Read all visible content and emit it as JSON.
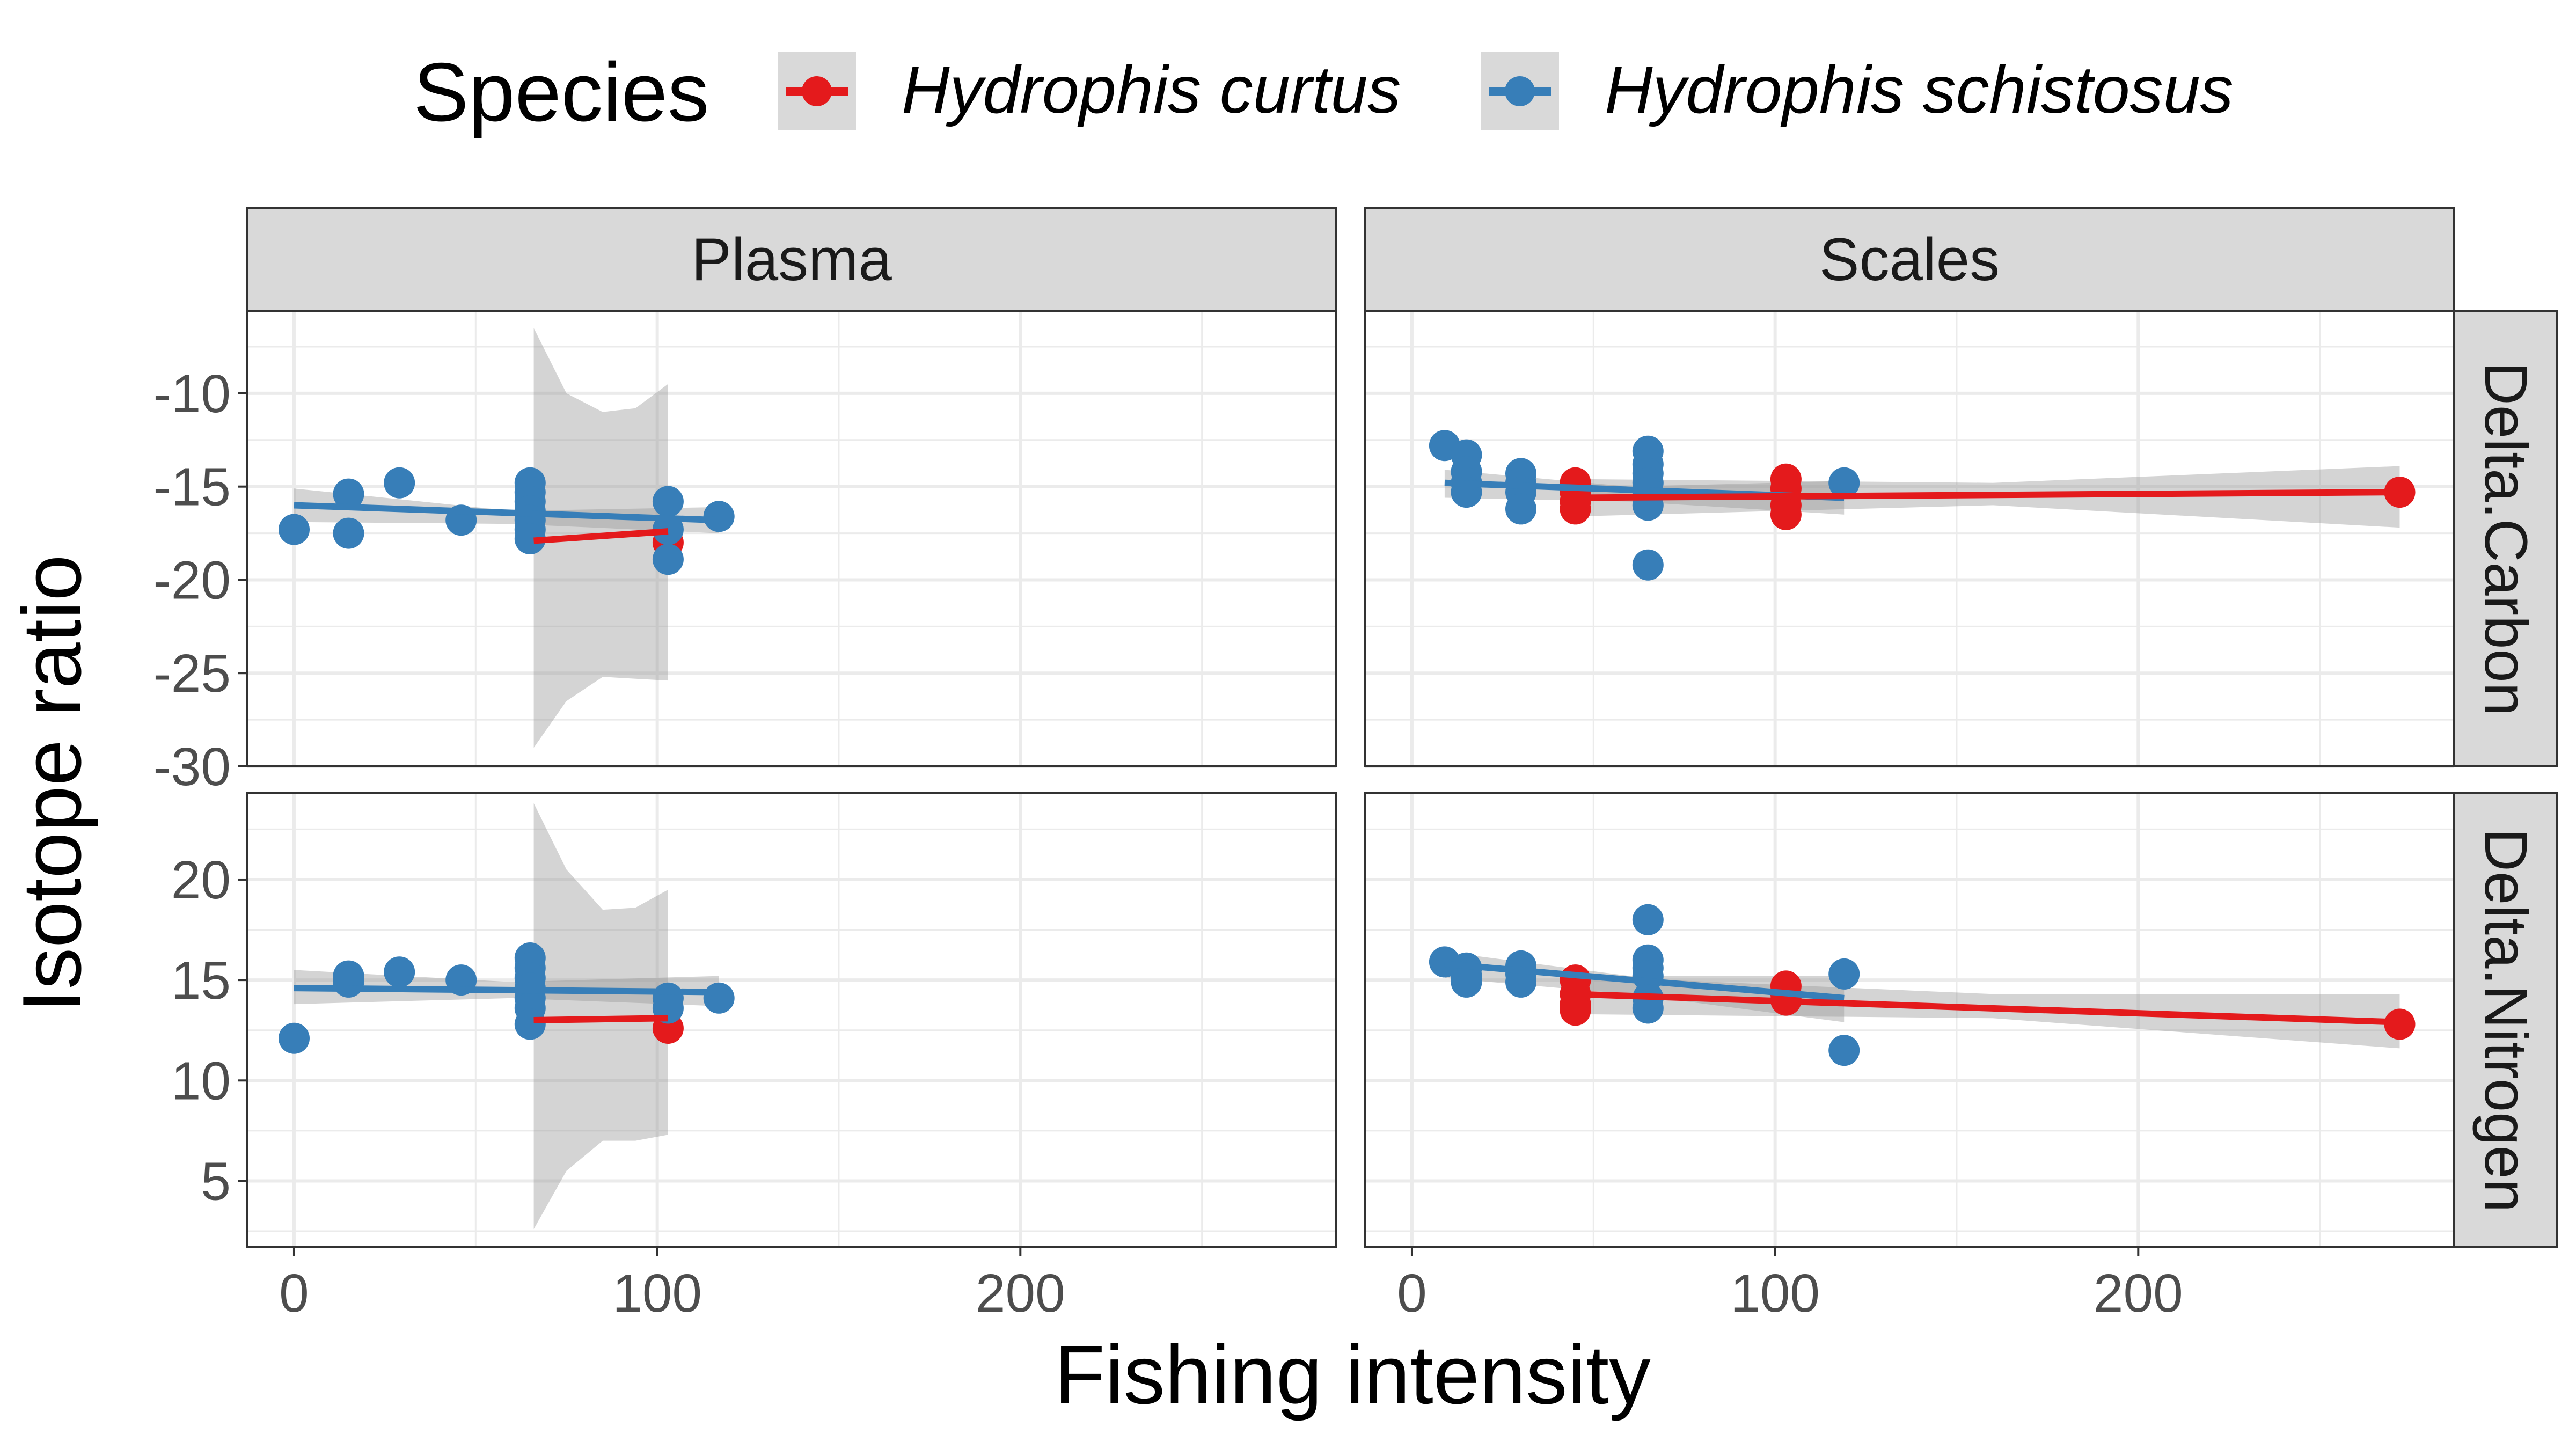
{
  "colors": {
    "curtus": "#E41A1C",
    "schistosus": "#377EB8",
    "ribbon": "#999999",
    "strip_bg": "#D9D9D9",
    "grid": "#EBEBEB",
    "border": "#333333"
  },
  "chart_data": {
    "type": "scatter",
    "xlabel": "Fishing intensity",
    "ylabel": "Isotope ratio",
    "legend": {
      "title": "Species",
      "placement": "top",
      "entries": [
        "Hydrophis curtus",
        "Hydrophis schistosus"
      ]
    },
    "column_facets": [
      "Plasma",
      "Scales"
    ],
    "row_facets": [
      "Delta.Carbon",
      "Delta.Nitrogen"
    ],
    "xlim": [
      -13,
      287
    ],
    "x_ticks": [
      "0",
      "100",
      "200"
    ],
    "rows": [
      {
        "ylim": [
          -30,
          -5.6
        ],
        "y_ticks": [
          "-30",
          "-25",
          "-20",
          "-15",
          "-10"
        ]
      },
      {
        "ylim": [
          1.7,
          24.3
        ],
        "y_ticks": [
          "5",
          "10",
          "15",
          "20"
        ]
      }
    ],
    "panels": [
      {
        "column": "Plasma",
        "row": "Delta.Carbon",
        "series": [
          {
            "name": "Hydrophis schistosus",
            "points": [
              [
                0,
                -17.3
              ],
              [
                15,
                -15.4
              ],
              [
                15,
                -17.5
              ],
              [
                29,
                -14.8
              ],
              [
                46,
                -16.8
              ],
              [
                65,
                -14.8
              ],
              [
                65,
                -15.3
              ],
              [
                65,
                -15.8
              ],
              [
                65,
                -16.3
              ],
              [
                65,
                -16.8
              ],
              [
                65,
                -17.3
              ],
              [
                65,
                -17.8
              ],
              [
                103,
                -15.8
              ],
              [
                103,
                -17.3
              ],
              [
                103,
                -18.9
              ],
              [
                117,
                -16.6
              ]
            ],
            "fit": {
              "x": [
                0,
                117
              ],
              "y": [
                -16.0,
                -16.8
              ]
            },
            "band": {
              "x": [
                0,
                60,
                117
              ],
              "lo": [
                -16.9,
                -17.0,
                -17.5
              ],
              "hi": [
                -15.1,
                -16.3,
                -16.1
              ]
            }
          },
          {
            "name": "Hydrophis curtus",
            "points": [
              [
                103,
                -18.0
              ]
            ],
            "fit": {
              "x": [
                66,
                103
              ],
              "y": [
                -17.9,
                -17.4
              ]
            },
            "band": {
              "x": [
                66,
                75,
                85,
                94,
                103
              ],
              "lo": [
                -29.0,
                -26.5,
                -25.2,
                -25.3,
                -25.4
              ],
              "hi": [
                -6.5,
                -10.0,
                -11.0,
                -10.8,
                -9.5
              ]
            }
          }
        ]
      },
      {
        "column": "Scales",
        "row": "Delta.Carbon",
        "series": [
          {
            "name": "Hydrophis schistosus",
            "points": [
              [
                9,
                -12.8
              ],
              [
                15,
                -13.3
              ],
              [
                15,
                -14.2
              ],
              [
                15,
                -14.8
              ],
              [
                15,
                -15.3
              ],
              [
                30,
                -14.3
              ],
              [
                30,
                -14.8
              ],
              [
                30,
                -15.3
              ],
              [
                30,
                -16.2
              ],
              [
                65,
                -13.1
              ],
              [
                65,
                -13.8
              ],
              [
                65,
                -14.3
              ],
              [
                65,
                -14.8
              ],
              [
                65,
                -15.3
              ],
              [
                65,
                -16.0
              ],
              [
                65,
                -19.2
              ],
              [
                119,
                -14.8
              ]
            ],
            "fit": {
              "x": [
                9,
                119
              ],
              "y": [
                -14.8,
                -15.6
              ]
            },
            "band": {
              "x": [
                9,
                60,
                119
              ],
              "lo": [
                -15.6,
                -15.8,
                -16.5
              ],
              "hi": [
                -14.1,
                -15.0,
                -14.7
              ]
            }
          },
          {
            "name": "Hydrophis curtus",
            "points": [
              [
                45,
                -14.8
              ],
              [
                45,
                -15.3
              ],
              [
                45,
                -15.8
              ],
              [
                45,
                -16.2
              ],
              [
                103,
                -14.6
              ],
              [
                103,
                -15.1
              ],
              [
                103,
                -16.0
              ],
              [
                103,
                -16.5
              ],
              [
                272,
                -15.3
              ]
            ],
            "fit": {
              "x": [
                45,
                272
              ],
              "y": [
                -15.6,
                -15.3
              ]
            },
            "band": {
              "x": [
                45,
                160,
                272
              ],
              "lo": [
                -16.6,
                -16.0,
                -17.2
              ],
              "hi": [
                -14.6,
                -14.8,
                -13.9
              ]
            }
          }
        ]
      },
      {
        "column": "Plasma",
        "row": "Delta.Nitrogen",
        "series": [
          {
            "name": "Hydrophis schistosus",
            "points": [
              [
                0,
                12.1
              ],
              [
                15,
                15.2
              ],
              [
                15,
                14.9
              ],
              [
                29,
                15.4
              ],
              [
                46,
                15.0
              ],
              [
                65,
                16.1
              ],
              [
                65,
                15.6
              ],
              [
                65,
                15.1
              ],
              [
                65,
                14.6
              ],
              [
                65,
                14.1
              ],
              [
                65,
                13.6
              ],
              [
                65,
                12.8
              ],
              [
                103,
                14.1
              ],
              [
                103,
                13.6
              ],
              [
                117,
                14.1
              ]
            ],
            "fit": {
              "x": [
                0,
                117
              ],
              "y": [
                14.6,
                14.4
              ]
            },
            "band": {
              "x": [
                0,
                60,
                117
              ],
              "lo": [
                13.8,
                14.1,
                13.7
              ],
              "hi": [
                15.5,
                14.9,
                15.2
              ]
            }
          },
          {
            "name": "Hydrophis curtus",
            "points": [
              [
                103,
                12.6
              ]
            ],
            "fit": {
              "x": [
                66,
                103
              ],
              "y": [
                13.0,
                13.1
              ]
            },
            "band": {
              "x": [
                66,
                75,
                85,
                94,
                103
              ],
              "lo": [
                2.6,
                5.5,
                7.0,
                7.0,
                7.3
              ],
              "hi": [
                23.8,
                20.5,
                18.5,
                18.6,
                19.5
              ]
            }
          }
        ]
      },
      {
        "column": "Scales",
        "row": "Delta.Nitrogen",
        "series": [
          {
            "name": "Hydrophis schistosus",
            "points": [
              [
                9,
                15.9
              ],
              [
                15,
                15.6
              ],
              [
                15,
                15.2
              ],
              [
                15,
                14.9
              ],
              [
                30,
                15.7
              ],
              [
                30,
                15.3
              ],
              [
                30,
                14.9
              ],
              [
                65,
                18.0
              ],
              [
                65,
                16.0
              ],
              [
                65,
                15.6
              ],
              [
                65,
                15.2
              ],
              [
                65,
                14.1
              ],
              [
                65,
                13.6
              ],
              [
                119,
                15.3
              ],
              [
                119,
                11.5
              ]
            ],
            "fit": {
              "x": [
                9,
                119
              ],
              "y": [
                15.8,
                14.1
              ]
            },
            "band": {
              "x": [
                9,
                60,
                119
              ],
              "lo": [
                15.1,
                14.3,
                12.9
              ],
              "hi": [
                16.4,
                15.2,
                15.2
              ]
            }
          },
          {
            "name": "Hydrophis curtus",
            "points": [
              [
                45,
                15.0
              ],
              [
                45,
                14.3
              ],
              [
                45,
                13.8
              ],
              [
                45,
                13.5
              ],
              [
                103,
                14.7
              ],
              [
                103,
                14.3
              ],
              [
                103,
                14.0
              ],
              [
                272,
                12.8
              ]
            ],
            "fit": {
              "x": [
                45,
                272
              ],
              "y": [
                14.3,
                12.9
              ]
            },
            "band": {
              "x": [
                45,
                160,
                272
              ],
              "lo": [
                13.3,
                13.1,
                11.6
              ],
              "hi": [
                15.2,
                14.3,
                14.3
              ]
            }
          }
        ]
      }
    ]
  }
}
